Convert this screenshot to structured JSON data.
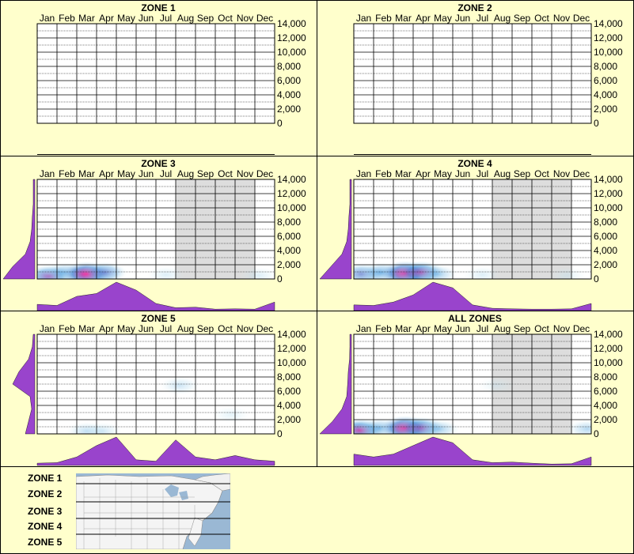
{
  "months": [
    "Jan",
    "Feb",
    "Mar",
    "Apr",
    "May",
    "Jun",
    "Jul",
    "Aug",
    "Sep",
    "Oct",
    "Nov",
    "Dec"
  ],
  "y_ticks": [
    "14,000",
    "12,000",
    "10,000",
    "8,000",
    "6,000",
    "4,000",
    "2,000",
    "0"
  ],
  "colors": {
    "background": "#ffffcc",
    "profile": "#9944cc",
    "shade": "#dddddd",
    "grid": "#000000",
    "heat_low": "#d9f2f5",
    "heat_mid": "#2e8bd9",
    "heat_high": "#ff1493"
  },
  "chart_data": [
    {
      "type": "heatmap",
      "title": "ZONE 1",
      "ylim": [
        0,
        14000
      ],
      "shade_months": [],
      "hotspots": [],
      "month_profile": [],
      "elev_profile": []
    },
    {
      "type": "heatmap",
      "title": "ZONE 2",
      "ylim": [
        0,
        14000
      ],
      "shade_months": [],
      "hotspots": [],
      "month_profile": [],
      "elev_profile": []
    },
    {
      "type": "heatmap",
      "title": "ZONE 3",
      "ylim": [
        0,
        14000
      ],
      "shade_months": [
        "Aug",
        "Sep",
        "Oct",
        "Nov"
      ],
      "hotspots": [
        {
          "month": 0.6,
          "elev": 400,
          "intensity": 0.75
        },
        {
          "month": 1.4,
          "elev": 900,
          "intensity": 0.45
        },
        {
          "month": 2.5,
          "elev": 700,
          "intensity": 1.0
        },
        {
          "month": 3.4,
          "elev": 900,
          "intensity": 0.6
        },
        {
          "month": 6.5,
          "elev": 600,
          "intensity": 0.12
        },
        {
          "month": 11.2,
          "elev": 500,
          "intensity": 0.12
        }
      ],
      "month_profile": [
        0.22,
        0.18,
        0.5,
        0.6,
        1.0,
        0.72,
        0.25,
        0.1,
        0.12,
        0.05,
        0.06,
        0.05,
        0.3
      ],
      "elev_profile": [
        1.0,
        0.7,
        0.3,
        0.15,
        0.1,
        0.08,
        0.05,
        0.05,
        0.05
      ]
    },
    {
      "type": "heatmap",
      "title": "ZONE 4",
      "ylim": [
        0,
        14000
      ],
      "shade_months": [
        "Aug",
        "Sep",
        "Oct",
        "Nov"
      ],
      "hotspots": [
        {
          "month": 0.4,
          "elev": 700,
          "intensity": 0.6
        },
        {
          "month": 1.4,
          "elev": 900,
          "intensity": 0.5
        },
        {
          "month": 2.6,
          "elev": 800,
          "intensity": 1.0
        },
        {
          "month": 3.4,
          "elev": 900,
          "intensity": 0.8
        },
        {
          "month": 4.2,
          "elev": 700,
          "intensity": 0.35
        },
        {
          "month": 6.5,
          "elev": 600,
          "intensity": 0.12
        },
        {
          "month": 10.8,
          "elev": 500,
          "intensity": 0.08
        }
      ],
      "month_profile": [
        0.2,
        0.18,
        0.3,
        0.55,
        1.0,
        0.8,
        0.2,
        0.08,
        0.06,
        0.05,
        0.05,
        0.06,
        0.25
      ],
      "elev_profile": [
        1.0,
        0.65,
        0.3,
        0.15,
        0.1,
        0.08,
        0.05,
        0.05,
        0.05
      ]
    },
    {
      "type": "heatmap",
      "title": "ZONE 5",
      "ylim": [
        0,
        14000
      ],
      "shade_months": [],
      "hotspots": [
        {
          "month": 2.5,
          "elev": 400,
          "intensity": 0.25
        },
        {
          "month": 3.3,
          "elev": 400,
          "intensity": 0.18
        },
        {
          "month": 7.2,
          "elev": 6800,
          "intensity": 0.2
        },
        {
          "month": 9.8,
          "elev": 2700,
          "intensity": 0.08
        }
      ],
      "month_profile": [
        0.08,
        0.1,
        0.3,
        0.7,
        1.0,
        0.2,
        0.15,
        0.9,
        0.3,
        0.2,
        0.35,
        0.2,
        0.15
      ],
      "elev_profile": [
        0.3,
        0.2,
        0.1,
        0.15,
        0.7,
        0.5,
        0.2,
        0.08,
        0.05
      ]
    },
    {
      "type": "heatmap",
      "title": "ALL ZONES",
      "ylim": [
        0,
        14000
      ],
      "shade_months": [
        "Aug",
        "Sep",
        "Oct",
        "Nov"
      ],
      "hotspots": [
        {
          "month": 0.3,
          "elev": 500,
          "intensity": 0.85
        },
        {
          "month": 1.3,
          "elev": 800,
          "intensity": 0.45
        },
        {
          "month": 2.6,
          "elev": 800,
          "intensity": 1.0
        },
        {
          "month": 3.4,
          "elev": 800,
          "intensity": 0.75
        },
        {
          "month": 4.3,
          "elev": 700,
          "intensity": 0.35
        },
        {
          "month": 7.2,
          "elev": 6800,
          "intensity": 0.06
        },
        {
          "month": 11.8,
          "elev": 700,
          "intensity": 0.3
        }
      ],
      "month_profile": [
        0.4,
        0.3,
        0.4,
        0.7,
        1.0,
        0.8,
        0.2,
        0.1,
        0.12,
        0.08,
        0.05,
        0.06,
        0.3
      ],
      "elev_profile": [
        1.0,
        0.6,
        0.3,
        0.15,
        0.12,
        0.1,
        0.06,
        0.05,
        0.05
      ]
    }
  ],
  "legend": {
    "zones": [
      "ZONE 1",
      "ZONE 2",
      "ZONE 3",
      "ZONE 4",
      "ZONE 5"
    ]
  }
}
